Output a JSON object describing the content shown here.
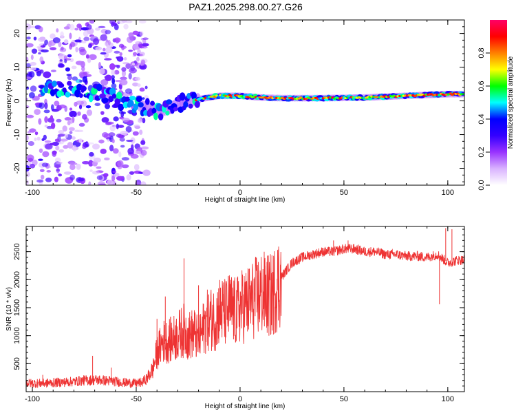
{
  "title": "PAZ1.2025.298.00.27.G26",
  "chart_data": [
    {
      "type": "heatmap",
      "name": "spectrogram",
      "xlabel": "Height of straight line (km)",
      "ylabel": "Frequency (Hz)",
      "xlim": [
        -103,
        108
      ],
      "ylim": [
        -25,
        24
      ],
      "xticks": [
        -100,
        -50,
        0,
        50,
        100
      ],
      "yticks": [
        -20,
        -10,
        0,
        10,
        20
      ],
      "ridge": {
        "x": [
          -100,
          -90,
          -80,
          -75,
          -70,
          -65,
          -60,
          -55,
          -50,
          -45,
          -40,
          -35,
          -30,
          -25,
          -20,
          -10,
          0,
          10,
          20,
          40,
          60,
          80,
          100,
          108
        ],
        "freq": [
          4,
          4,
          3.5,
          3,
          2.5,
          1.5,
          0.5,
          -0.5,
          -1,
          -2,
          -3,
          -2.5,
          -1,
          0,
          0.5,
          1.5,
          1.5,
          1,
          0.8,
          0.8,
          1,
          1.5,
          2,
          2
        ]
      },
      "colorbar": {
        "label": "Normalized spectral amplitude",
        "range": [
          0,
          1
        ],
        "ticks": [
          0.0,
          0.2,
          0.4,
          0.6,
          0.8
        ],
        "tick_labels": [
          "0.0",
          "0.2",
          "0.4",
          "0.6",
          "0.8"
        ],
        "colors": [
          "#ffffff",
          "#d9b3ff",
          "#9933ff",
          "#3300ff",
          "#0000ff",
          "#00ffff",
          "#00ff00",
          "#ffff00",
          "#ff8000",
          "#ff0000",
          "#ff0066"
        ]
      }
    },
    {
      "type": "line",
      "name": "snr",
      "xlabel": "Height of straight line (km)",
      "ylabel": "SNR (10 * v/v)",
      "xlim": [
        -103,
        108
      ],
      "ylim": [
        0,
        2950
      ],
      "xticks": [
        -100,
        -50,
        0,
        50,
        100
      ],
      "yticks": [
        500,
        1000,
        1500,
        2000,
        2500
      ],
      "color": "#ee3333",
      "series": [
        {
          "name": "SNR",
          "x": [
            -103,
            -95,
            -90,
            -85,
            -80,
            -75,
            -70,
            -65,
            -60,
            -55,
            -50,
            -47,
            -45,
            -42,
            -40,
            -37,
            -35,
            -32,
            -30,
            -27,
            -25,
            -22,
            -20,
            -17,
            -15,
            -12,
            -10,
            -7,
            -5,
            -2,
            0,
            5,
            10,
            15,
            20,
            25,
            30,
            35,
            40,
            45,
            50,
            55,
            60,
            65,
            70,
            75,
            80,
            85,
            90,
            95,
            100,
            105,
            108
          ],
          "y": [
            150,
            150,
            160,
            170,
            180,
            200,
            210,
            200,
            180,
            160,
            150,
            170,
            230,
            400,
            700,
            900,
            900,
            950,
            1000,
            1100,
            1000,
            1050,
            900,
            1200,
            1300,
            1300,
            1450,
            1400,
            1500,
            1400,
            1500,
            1600,
            1750,
            1700,
            2050,
            2300,
            2400,
            2450,
            2500,
            2500,
            2550,
            2550,
            2500,
            2500,
            2450,
            2450,
            2420,
            2420,
            2400,
            2450,
            2300,
            2350,
            2350
          ],
          "spikes": [
            {
              "x": -95,
              "y": 300
            },
            {
              "x": -71,
              "y": 640
            },
            {
              "x": -62,
              "y": 430
            },
            {
              "x": -40,
              "y": 1300
            },
            {
              "x": -36,
              "y": 1700
            },
            {
              "x": -27,
              "y": 2380
            },
            {
              "x": -20,
              "y": 1900
            },
            {
              "x": -8,
              "y": 1950
            },
            {
              "x": 2,
              "y": 1750
            },
            {
              "x": 12,
              "y": 2250
            },
            {
              "x": 45,
              "y": 2700
            },
            {
              "x": 52,
              "y": 2700
            },
            {
              "x": 96,
              "y": 1560
            },
            {
              "x": 99,
              "y": 2920
            },
            {
              "x": 102,
              "y": 2900
            }
          ]
        }
      ]
    }
  ]
}
